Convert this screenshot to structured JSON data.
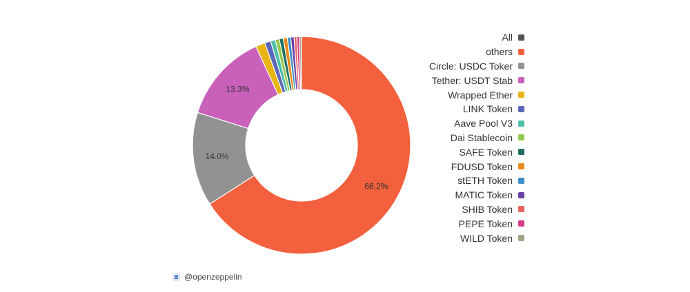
{
  "chart_data": {
    "type": "pie",
    "title": "",
    "donut": true,
    "slices": [
      {
        "label": "others",
        "value": 66.2,
        "color": "#f2603d",
        "show_label": true
      },
      {
        "label": "Circle: USDC Token",
        "value": 14.0,
        "color": "#929292",
        "show_label": true
      },
      {
        "label": "Tether: USDT Stablecoin",
        "value": 13.3,
        "color": "#c960b9",
        "show_label": true
      },
      {
        "label": "Wrapped Ether",
        "value": 1.4,
        "color": "#e8b514",
        "show_label": false
      },
      {
        "label": "LINK Token",
        "value": 0.9,
        "color": "#5b67b8",
        "show_label": false
      },
      {
        "label": "Aave Pool V3",
        "value": 0.7,
        "color": "#4fc0a8",
        "show_label": false
      },
      {
        "label": "Dai Stablecoin",
        "value": 0.6,
        "color": "#93c94f",
        "show_label": false
      },
      {
        "label": "SAFE Token",
        "value": 0.6,
        "color": "#1f6e61",
        "show_label": false
      },
      {
        "label": "FDUSD Token",
        "value": 0.6,
        "color": "#e88a1b",
        "show_label": false
      },
      {
        "label": "stETH Token",
        "value": 0.5,
        "color": "#3a8fc8",
        "show_label": false
      },
      {
        "label": "MATIC Token",
        "value": 0.5,
        "color": "#6c42a6",
        "show_label": false
      },
      {
        "label": "SHIB Token",
        "value": 0.4,
        "color": "#ea6461",
        "show_label": false
      },
      {
        "label": "PEPE Token",
        "value": 0.4,
        "color": "#d43d8a",
        "show_label": false
      },
      {
        "label": "WILD Token",
        "value": 0.3,
        "color": "#a3a38a",
        "show_label": false
      }
    ],
    "legend_placement": "right"
  },
  "legend": {
    "items": [
      {
        "label": "All",
        "color": "#555555"
      },
      {
        "label": "others",
        "color": "#f2603d"
      },
      {
        "label": "Circle: USDC Toker",
        "color": "#929292"
      },
      {
        "label": "Tether: USDT Stab",
        "color": "#c960b9"
      },
      {
        "label": "Wrapped Ether",
        "color": "#e8b514"
      },
      {
        "label": "LINK Token",
        "color": "#5b67b8"
      },
      {
        "label": "Aave Pool V3",
        "color": "#4fc0a8"
      },
      {
        "label": "Dai Stablecoin",
        "color": "#93c94f"
      },
      {
        "label": "SAFE Token",
        "color": "#1f6e61"
      },
      {
        "label": "FDUSD Token",
        "color": "#e88a1b"
      },
      {
        "label": "stETH Token",
        "color": "#3a8fc8"
      },
      {
        "label": "MATIC Token",
        "color": "#6c42a6"
      },
      {
        "label": "SHIB Token",
        "color": "#ea6461"
      },
      {
        "label": "PEPE Token",
        "color": "#d43d8a"
      },
      {
        "label": "WILD Token",
        "color": "#a3a38a"
      }
    ]
  },
  "watermark": {
    "text": "@openzeppelin",
    "logo_icon": "dune-logo-icon"
  }
}
